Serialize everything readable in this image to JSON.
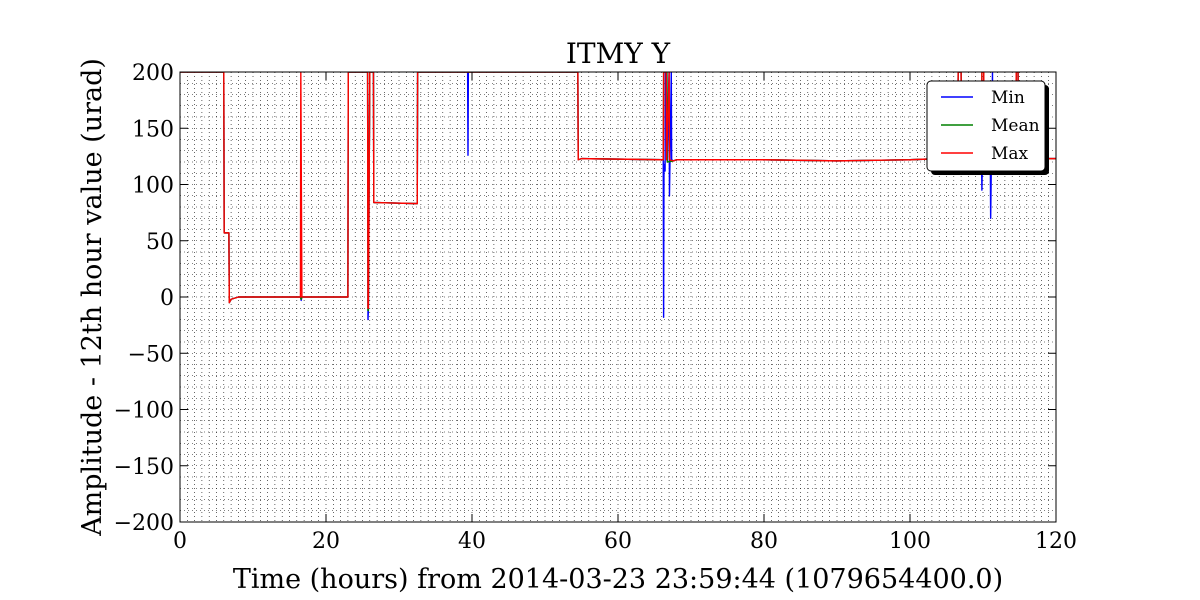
{
  "chart_data": {
    "type": "line",
    "title": "ITMY Y",
    "xlabel": "Time (hours) from 2014-03-23 23:59:44 (1079654400.0)",
    "ylabel": "Amplitude - 12th hour value (urad)",
    "xlim": [
      0,
      120
    ],
    "ylim": [
      -200,
      200
    ],
    "x_ticks": [
      0,
      20,
      40,
      60,
      80,
      100,
      120
    ],
    "y_ticks": [
      -200,
      -150,
      -100,
      -50,
      0,
      50,
      100,
      150,
      200
    ],
    "x_tick_labels": [
      "0",
      "20",
      "40",
      "60",
      "80",
      "100",
      "120"
    ],
    "y_tick_labels": [
      "−200",
      "−150",
      "−100",
      "−50",
      "0",
      "50",
      "100",
      "150",
      "200"
    ],
    "grid": true,
    "legend_position": "top-right",
    "series": [
      {
        "name": "Min",
        "color": "#0000ff",
        "x": [
          0,
          6.0,
          6.05,
          6.7,
          6.75,
          7.0,
          8.0,
          16.5,
          16.6,
          16.7,
          23.0,
          23.05,
          25.7,
          25.75,
          25.8,
          26.0,
          26.5,
          26.55,
          32.5,
          32.55,
          39.4,
          39.45,
          39.5,
          54.5,
          54.55,
          55.0,
          66.2,
          66.25,
          66.3,
          66.45,
          66.5,
          66.7,
          66.75,
          67.0,
          67.05,
          67.3,
          67.35,
          67.6,
          68.0,
          80,
          90,
          100,
          104,
          106.5,
          106.6,
          107.0,
          107.05,
          109.8,
          109.85,
          110.1,
          110.15,
          111.0,
          111.05,
          111.3,
          111.35,
          114.5,
          114.55,
          114.8,
          114.85,
          115.0,
          120
        ],
        "y": [
          200,
          200,
          57,
          57,
          -5,
          -2,
          0,
          0,
          -3,
          0,
          0,
          200,
          200,
          -20,
          -13,
          200,
          200,
          84,
          83,
          200,
          200,
          126,
          200,
          200,
          122,
          123,
          122,
          -18,
          118,
          112,
          200,
          200,
          120,
          200,
          90,
          200,
          122,
          121,
          122,
          122,
          121,
          122,
          123,
          123,
          200,
          200,
          122,
          122,
          95,
          200,
          122,
          122,
          70,
          200,
          122,
          122,
          200,
          200,
          123,
          123,
          123
        ]
      },
      {
        "name": "Mean",
        "color": "#008000",
        "x": [
          0,
          6.0,
          6.05,
          6.7,
          6.75,
          7.0,
          8.0,
          16.5,
          16.6,
          16.7,
          23.0,
          23.05,
          25.7,
          25.75,
          25.8,
          26.0,
          26.5,
          26.55,
          32.5,
          32.55,
          54.5,
          54.55,
          55.0,
          66.2,
          66.25,
          66.5,
          66.7,
          66.75,
          67.6,
          68.0,
          80,
          90,
          100,
          104,
          106.5,
          106.6,
          107.0,
          107.05,
          109.8,
          109.85,
          110.1,
          110.15,
          114.5,
          114.55,
          114.8,
          114.85,
          120
        ],
        "y": [
          200,
          200,
          57,
          57,
          -5,
          -2,
          0,
          0,
          -2,
          0,
          0,
          200,
          200,
          -12,
          -12,
          200,
          200,
          84,
          83,
          200,
          200,
          122,
          123,
          122,
          200,
          200,
          200,
          120,
          121,
          122,
          122,
          121,
          122,
          123,
          123,
          200,
          200,
          122,
          122,
          200,
          200,
          122,
          122,
          200,
          200,
          123,
          123
        ]
      },
      {
        "name": "Max",
        "color": "#ff0000",
        "x": [
          0,
          6.0,
          6.05,
          6.7,
          6.75,
          7.0,
          8.0,
          16.5,
          16.55,
          16.7,
          23.0,
          23.05,
          25.7,
          25.75,
          25.8,
          26.0,
          26.5,
          26.55,
          32.5,
          32.55,
          54.5,
          54.55,
          55.0,
          66.2,
          66.25,
          66.5,
          66.6,
          66.65,
          67.0,
          67.05,
          67.6,
          68.0,
          80,
          90,
          100,
          104,
          106.5,
          106.6,
          107.0,
          107.05,
          109.8,
          109.85,
          110.1,
          110.15,
          114.5,
          114.55,
          114.8,
          114.85,
          120
        ],
        "y": [
          200,
          200,
          57,
          57,
          -5,
          -2,
          0,
          0,
          200,
          0,
          0,
          200,
          200,
          -10,
          -10,
          200,
          200,
          84,
          83,
          200,
          200,
          122,
          123,
          122,
          200,
          200,
          200,
          122,
          200,
          122,
          121,
          122,
          122,
          121,
          122,
          123,
          123,
          200,
          200,
          122,
          122,
          200,
          200,
          122,
          122,
          200,
          200,
          123,
          123
        ]
      }
    ]
  }
}
